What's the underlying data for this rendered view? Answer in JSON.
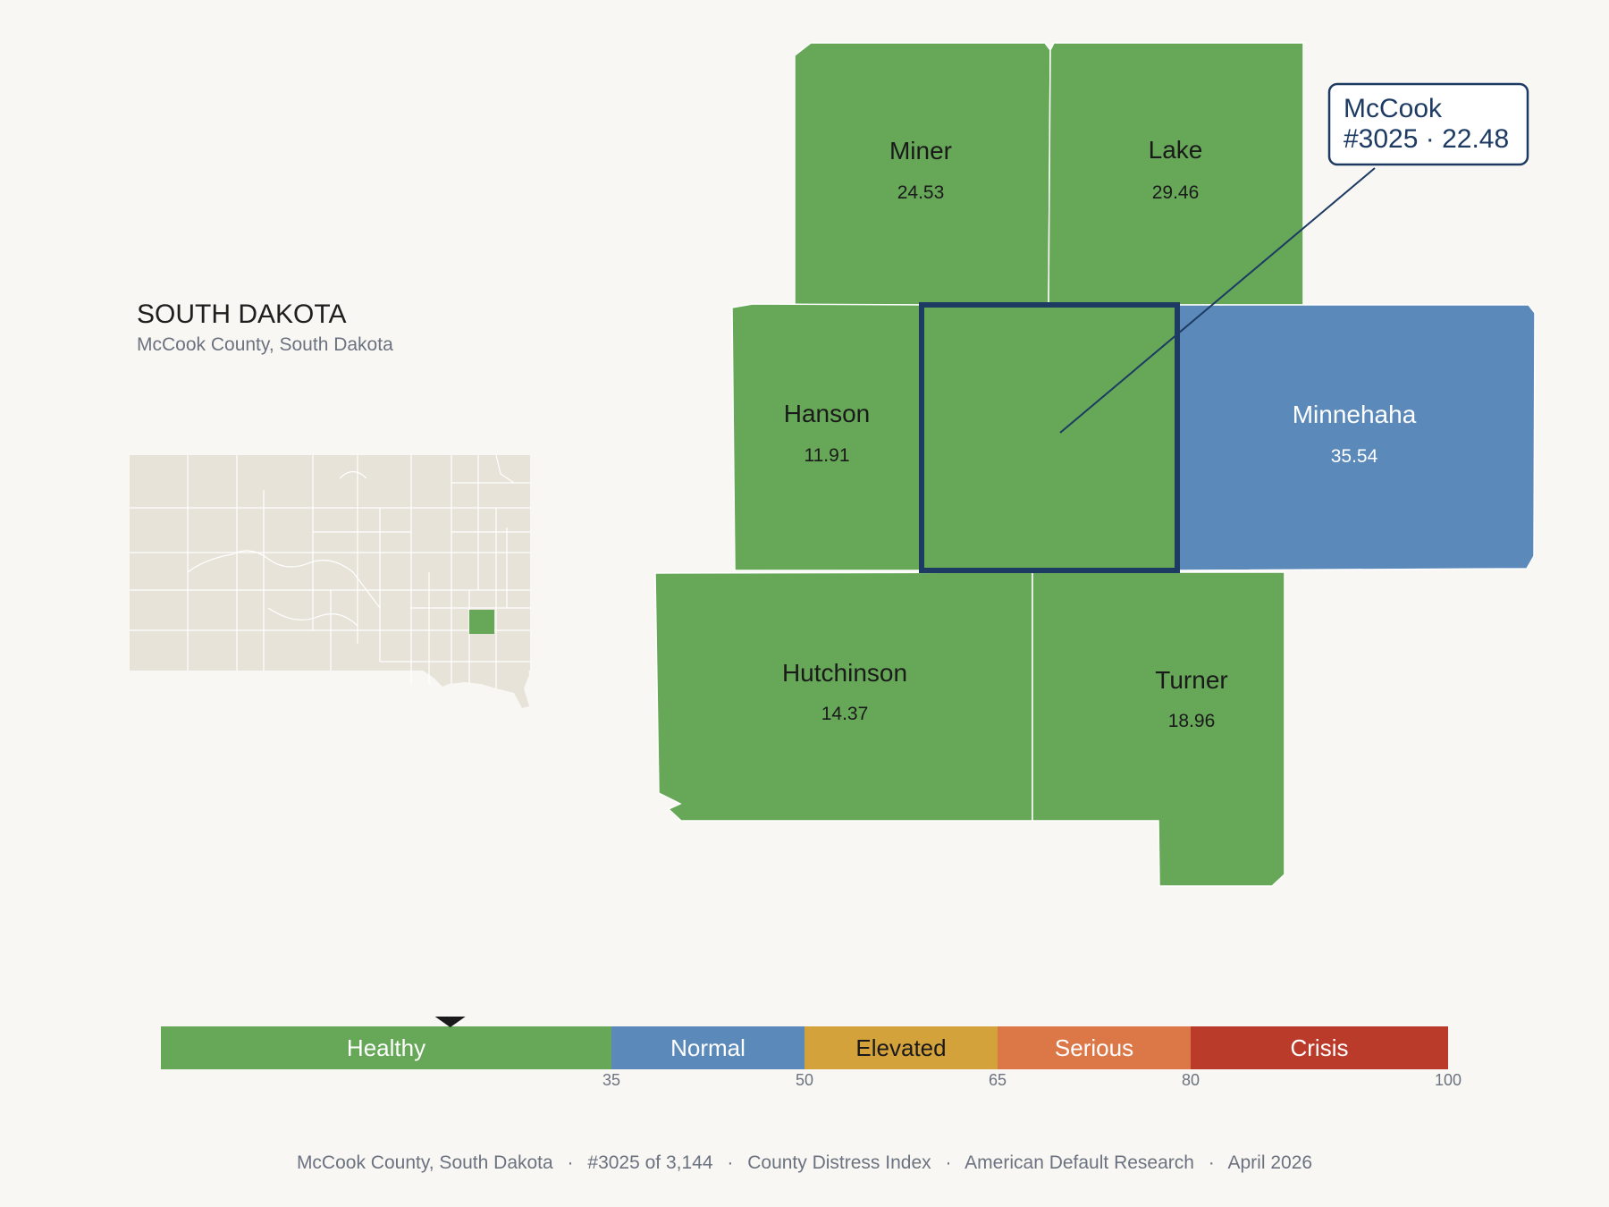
{
  "header": {
    "state_title": "SOUTH DAKOTA",
    "county_subtitle": "McCook County, South Dakota"
  },
  "colors": {
    "background": "#f9f7f3",
    "healthy": "#66a758",
    "normal": "#5b8aba",
    "elevated": "#d4a23a",
    "serious": "#dc7747",
    "crisis": "#bb3b2b",
    "inset_fill": "#e8e3d9",
    "highlight_stroke": "#1d3a63"
  },
  "counties": [
    {
      "id": "miner",
      "name": "Miner",
      "value": "24.53",
      "category": "healthy"
    },
    {
      "id": "lake",
      "name": "Lake",
      "value": "29.46",
      "category": "healthy"
    },
    {
      "id": "hanson",
      "name": "Hanson",
      "value": "11.91",
      "category": "healthy"
    },
    {
      "id": "mccook",
      "name": "McCook",
      "value": "22.48",
      "category": "healthy"
    },
    {
      "id": "minnehaha",
      "name": "Minnehaha",
      "value": "35.54",
      "category": "normal"
    },
    {
      "id": "hutchinson",
      "name": "Hutchinson",
      "value": "14.37",
      "category": "healthy"
    },
    {
      "id": "turner",
      "name": "Turner",
      "value": "18.96",
      "category": "healthy"
    }
  ],
  "callout": {
    "line1": "McCook",
    "line2": "#3025 · 22.48"
  },
  "legend": {
    "marker_value": 22.48,
    "min": 0,
    "max": 100,
    "bands": [
      {
        "label": "Healthy",
        "from": 0,
        "to": 35,
        "color": "#66a758"
      },
      {
        "label": "Normal",
        "from": 35,
        "to": 50,
        "color": "#5b8aba"
      },
      {
        "label": "Elevated",
        "from": 50,
        "to": 65,
        "color": "#d4a23a"
      },
      {
        "label": "Serious",
        "from": 65,
        "to": 80,
        "color": "#dc7747"
      },
      {
        "label": "Crisis",
        "from": 80,
        "to": 100,
        "color": "#bb3b2b"
      }
    ],
    "ticks": [
      "35",
      "50",
      "65",
      "80",
      "100"
    ]
  },
  "footer": {
    "county": "McCook County, South Dakota",
    "rank": "#3025 of 3,144",
    "index": "County Distress Index",
    "source": "American Default Research",
    "date": "April 2026",
    "separator": "·"
  }
}
